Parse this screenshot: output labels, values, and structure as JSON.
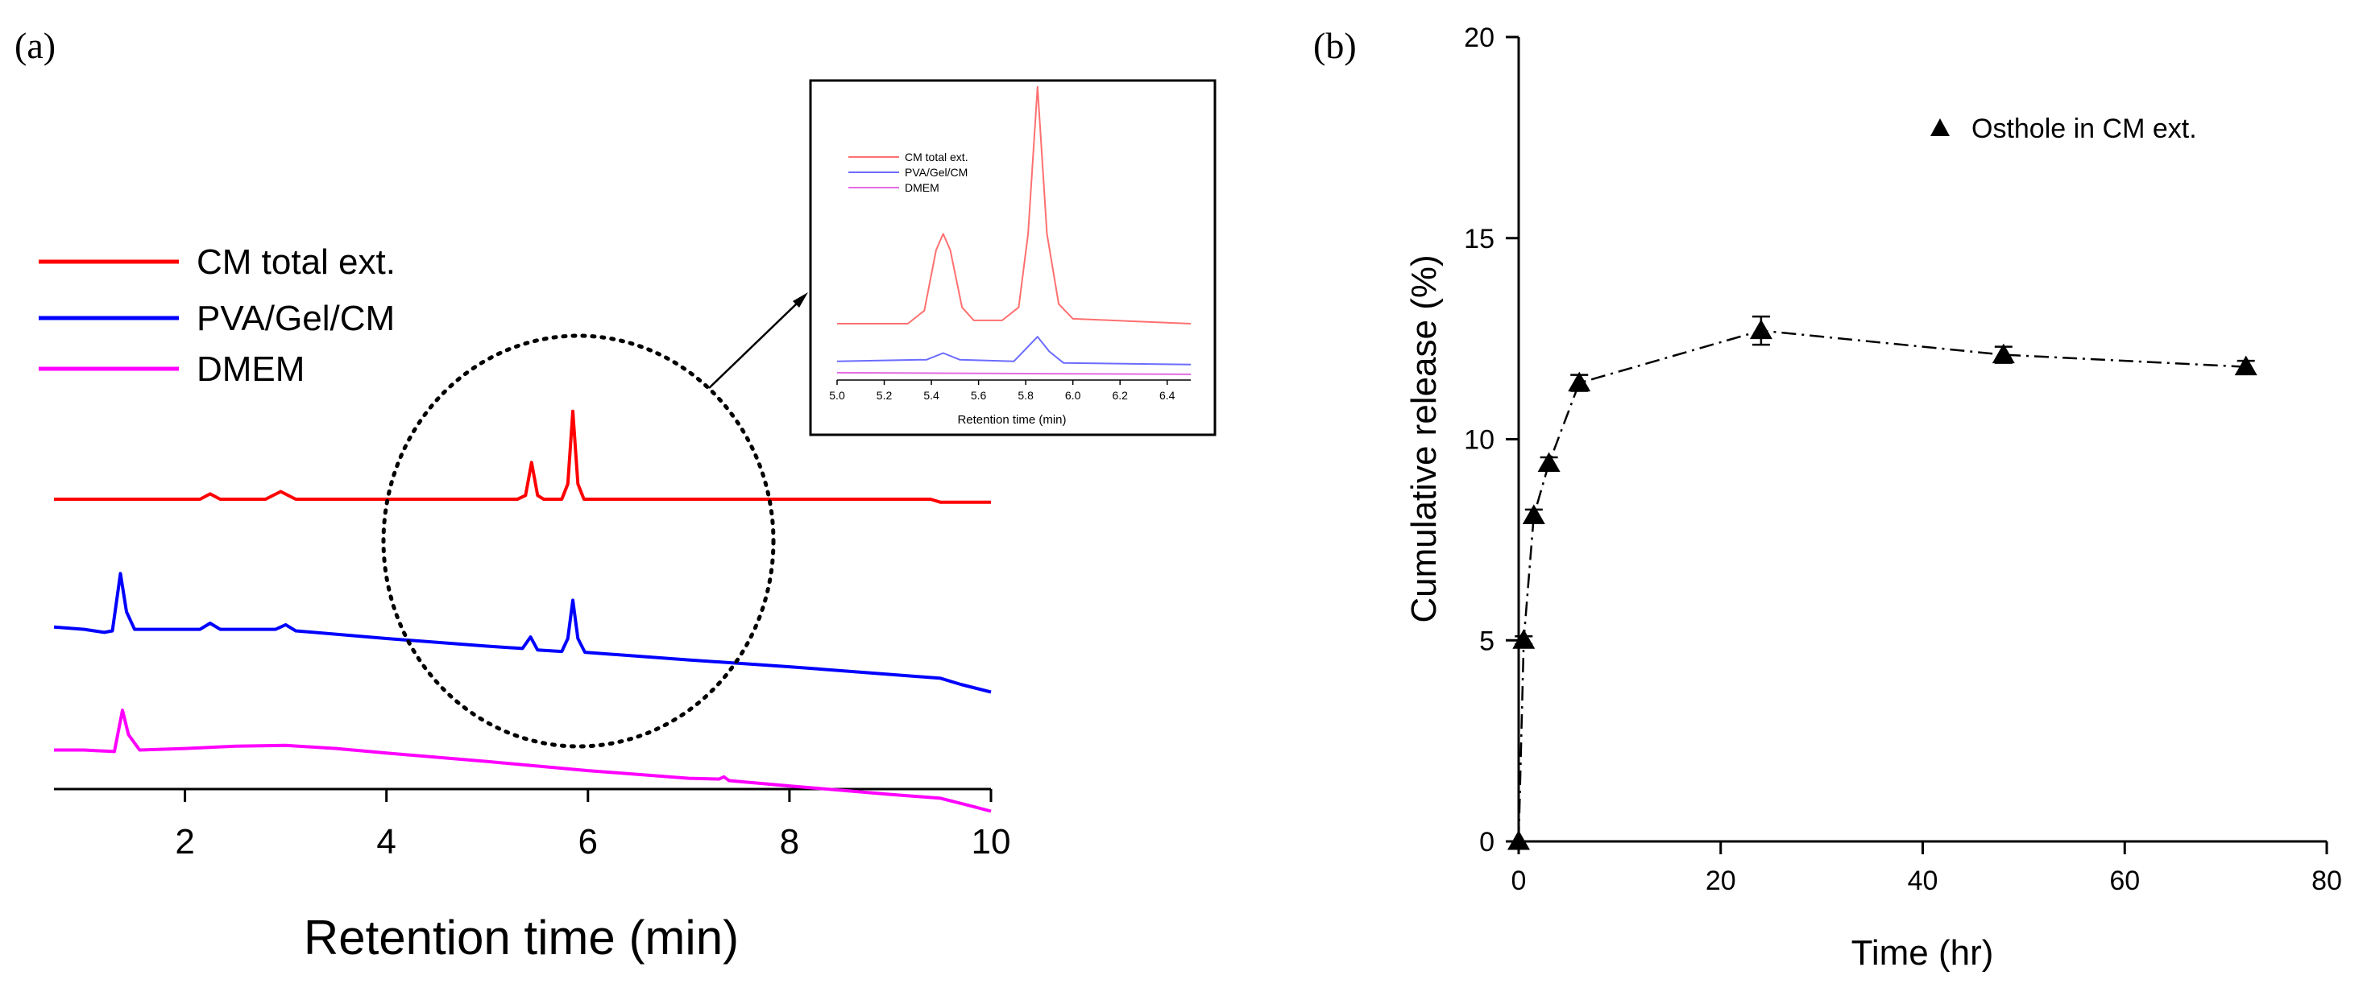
{
  "panel_a": {
    "label": "(a)",
    "chart_data": {
      "type": "line",
      "xlabel": "Retention time (min)",
      "ylabel": "",
      "xlim": [
        0.7,
        10
      ],
      "x_ticks": [
        2,
        4,
        6,
        8,
        10
      ],
      "grid": false,
      "legend_placement": "top-left",
      "y_axis_visible": false,
      "series": [
        {
          "name": "CM total ext.",
          "color": "#ff0000",
          "points": [
            [
              0.7,
              0.0
            ],
            [
              1.2,
              0.0
            ],
            [
              2.0,
              0.0
            ],
            [
              2.15,
              0.0
            ],
            [
              2.25,
              0.07
            ],
            [
              2.35,
              0.0
            ],
            [
              2.8,
              0.0
            ],
            [
              2.95,
              0.1
            ],
            [
              3.1,
              0.0
            ],
            [
              4.0,
              0.0
            ],
            [
              5.3,
              0.0
            ],
            [
              5.38,
              0.05
            ],
            [
              5.44,
              0.48
            ],
            [
              5.5,
              0.05
            ],
            [
              5.56,
              0.0
            ],
            [
              5.74,
              0.0
            ],
            [
              5.8,
              0.2
            ],
            [
              5.85,
              1.15
            ],
            [
              5.9,
              0.2
            ],
            [
              5.96,
              0.0
            ],
            [
              9.4,
              0.0
            ],
            [
              9.5,
              -0.04
            ],
            [
              10.0,
              -0.04
            ]
          ]
        },
        {
          "name": "PVA/Gel/CM",
          "color": "#0000ff",
          "points": [
            [
              0.7,
              -0.65
            ],
            [
              1.0,
              -0.68
            ],
            [
              1.2,
              -0.72
            ],
            [
              1.28,
              -0.7
            ],
            [
              1.36,
              0.05
            ],
            [
              1.42,
              -0.45
            ],
            [
              1.5,
              -0.68
            ],
            [
              2.0,
              -0.68
            ],
            [
              2.15,
              -0.68
            ],
            [
              2.25,
              -0.6
            ],
            [
              2.35,
              -0.68
            ],
            [
              2.9,
              -0.68
            ],
            [
              3.0,
              -0.62
            ],
            [
              3.1,
              -0.7
            ],
            [
              4.0,
              -0.8
            ],
            [
              5.0,
              -0.9
            ],
            [
              5.35,
              -0.93
            ],
            [
              5.43,
              -0.78
            ],
            [
              5.5,
              -0.95
            ],
            [
              5.74,
              -0.97
            ],
            [
              5.8,
              -0.8
            ],
            [
              5.85,
              -0.3
            ],
            [
              5.9,
              -0.8
            ],
            [
              5.97,
              -0.98
            ],
            [
              7.0,
              -1.08
            ],
            [
              8.0,
              -1.17
            ],
            [
              9.0,
              -1.27
            ],
            [
              9.5,
              -1.32
            ],
            [
              9.7,
              -1.4
            ],
            [
              10.0,
              -1.5
            ]
          ]
        },
        {
          "name": "DMEM",
          "color": "#ff00ff",
          "points": [
            [
              0.7,
              -1.3
            ],
            [
              1.0,
              -1.3
            ],
            [
              1.3,
              -1.32
            ],
            [
              1.38,
              -0.78
            ],
            [
              1.44,
              -1.1
            ],
            [
              1.55,
              -1.3
            ],
            [
              2.0,
              -1.28
            ],
            [
              2.5,
              -1.25
            ],
            [
              3.0,
              -1.24
            ],
            [
              3.5,
              -1.28
            ],
            [
              4.0,
              -1.34
            ],
            [
              5.0,
              -1.45
            ],
            [
              6.0,
              -1.57
            ],
            [
              7.0,
              -1.67
            ],
            [
              7.3,
              -1.68
            ],
            [
              7.35,
              -1.65
            ],
            [
              7.4,
              -1.7
            ],
            [
              8.0,
              -1.77
            ],
            [
              9.0,
              -1.88
            ],
            [
              9.5,
              -1.93
            ],
            [
              9.8,
              -2.03
            ],
            [
              10.0,
              -2.1
            ]
          ]
        }
      ],
      "inset": {
        "type": "line",
        "xlabel": "Retention time (min)",
        "xlim": [
          5.0,
          6.5
        ],
        "x_tick_labels": [
          "5.0",
          "5.2",
          "5.4",
          "5.6",
          "5.8",
          "6.0",
          "6.2",
          "6.4"
        ],
        "legend": [
          "CM total ext.",
          "PVA/Gel/CM",
          "DMEM"
        ],
        "series": [
          {
            "name": "CM total ext.",
            "color": "#ff7070",
            "points": [
              [
                5.0,
                0.0
              ],
              [
                5.3,
                0.0
              ],
              [
                5.37,
                0.08
              ],
              [
                5.42,
                0.45
              ],
              [
                5.45,
                0.55
              ],
              [
                5.48,
                0.45
              ],
              [
                5.53,
                0.1
              ],
              [
                5.58,
                0.02
              ],
              [
                5.7,
                0.02
              ],
              [
                5.77,
                0.1
              ],
              [
                5.81,
                0.55
              ],
              [
                5.85,
                1.45
              ],
              [
                5.89,
                0.55
              ],
              [
                5.94,
                0.12
              ],
              [
                6.0,
                0.03
              ],
              [
                6.5,
                0.0
              ]
            ]
          },
          {
            "name": "PVA/Gel/CM",
            "color": "#6b6bff",
            "points": [
              [
                5.0,
                -0.23
              ],
              [
                5.38,
                -0.22
              ],
              [
                5.45,
                -0.18
              ],
              [
                5.52,
                -0.22
              ],
              [
                5.75,
                -0.23
              ],
              [
                5.81,
                -0.14
              ],
              [
                5.85,
                -0.08
              ],
              [
                5.9,
                -0.17
              ],
              [
                5.96,
                -0.24
              ],
              [
                6.5,
                -0.25
              ]
            ]
          },
          {
            "name": "DMEM",
            "color": "#e46be4",
            "points": [
              [
                5.0,
                -0.3
              ],
              [
                6.5,
                -0.31
              ]
            ]
          }
        ]
      }
    }
  },
  "panel_b": {
    "label": "(b)",
    "chart_data": {
      "type": "line",
      "xlabel": "Time (hr)",
      "ylabel": "Cumulative release (%)",
      "xlim": [
        0,
        80
      ],
      "ylim": [
        0,
        20
      ],
      "x_ticks": [
        0,
        20,
        40,
        60,
        80
      ],
      "y_ticks": [
        0,
        5,
        10,
        15,
        20
      ],
      "grid": false,
      "legend_placement": "top-right",
      "line_style": "dash-dot",
      "marker": "filled triangle",
      "series": [
        {
          "name": "Osthole in CM ext.",
          "color": "#000000",
          "x": [
            0,
            0.5,
            1.5,
            3,
            6,
            24,
            48,
            72
          ],
          "y": [
            0.0,
            5.0,
            8.1,
            9.4,
            11.4,
            12.7,
            12.1,
            11.8
          ],
          "error": [
            0,
            0.1,
            0.15,
            0.15,
            0.2,
            0.35,
            0.2,
            0.15
          ]
        }
      ]
    }
  }
}
